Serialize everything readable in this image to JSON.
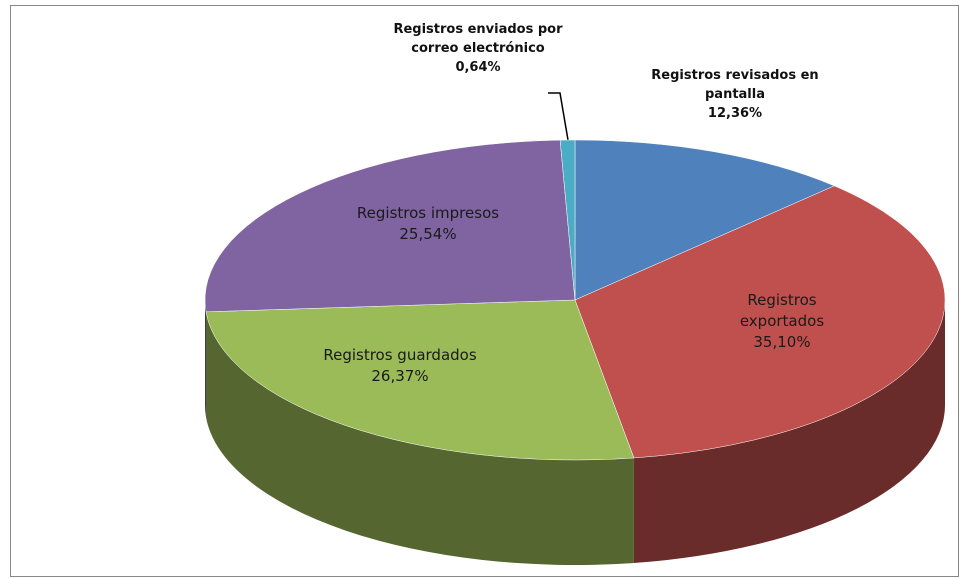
{
  "chart_data": {
    "type": "pie",
    "categories": [
      "Registros revisados en pantalla",
      "Registros exportados",
      "Registros guardados",
      "Registros impresos",
      "Registros enviados por correo electrónico"
    ],
    "values": [
      12.36,
      35.1,
      26.37,
      25.54,
      0.64
    ],
    "value_labels": [
      "12,36%",
      "35,10%",
      "26,37%",
      "25,54%",
      "0,64%"
    ],
    "colors": [
      "#4f81bd",
      "#c0504d",
      "#9bbb59",
      "#8064a2",
      "#4bacc6"
    ]
  }
}
